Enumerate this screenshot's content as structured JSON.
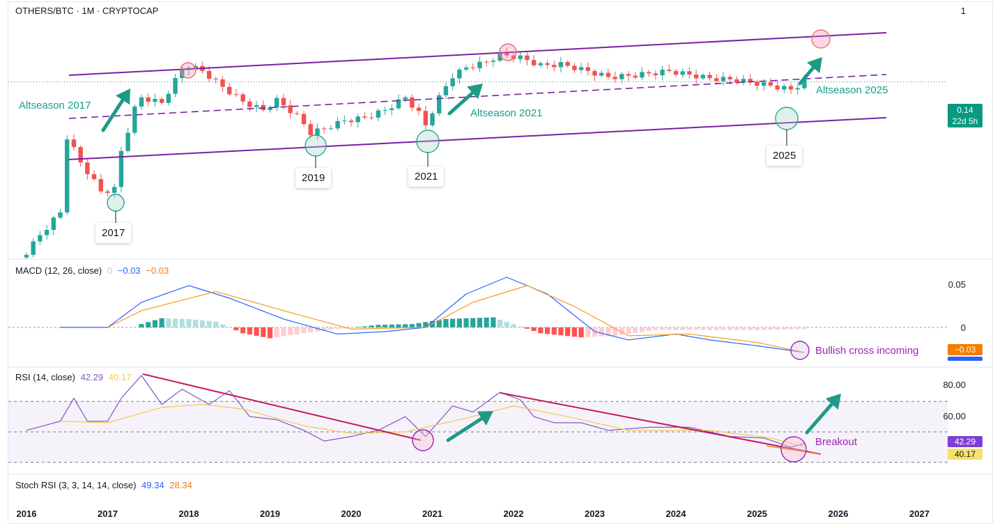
{
  "header": {
    "symbol_title": "OTHERS/BTC · 1M · CRYPTOCAP",
    "top_axis_value": "1"
  },
  "price_axis": {
    "price_tag": "0.14",
    "countdown_tag": "22d 5h",
    "tag_color": "#089981"
  },
  "macd": {
    "title": "MACD (12, 26, close)",
    "v_hist": "0",
    "v_macd": "−0.03",
    "v_signal": "−0.03",
    "axis_top": "0.05",
    "axis_zero": "0",
    "tag_value": "−0.03"
  },
  "rsi": {
    "title": "RSI (14, close)",
    "v_rsi": "42.29",
    "v_ma": "40.17",
    "axis_80": "80.00",
    "axis_60": "60.00",
    "tag_rsi": "42.29",
    "tag_ma": "40.17"
  },
  "stoch": {
    "title": "Stoch RSI (3, 3, 14, 14, close)",
    "v_k": "49.34",
    "v_d": "28.34"
  },
  "annotations": {
    "altseason_2017": "Altseason 2017",
    "altseason_2021": "Altseason 2021",
    "altseason_2025": "Altseason 2025",
    "bullish_cross": "Bullish cross incoming",
    "breakout": "Breakout",
    "year_2017": "2017",
    "year_2019": "2019",
    "year_2021": "2021",
    "year_2025": "2025"
  },
  "colors": {
    "up": "#26a69a",
    "down": "#ef5350",
    "channel": "#7b1fa2",
    "arrow": "#1e9a85",
    "annotation_teal": "#159e8b",
    "annotation_purple": "#9c27b0"
  },
  "chart_data": [
    {
      "type": "candlestick",
      "title": "OTHERS/BTC · 1M · CRYPTOCAP",
      "x_range": [
        "2016-01",
        "2027-01"
      ],
      "x_ticks": [
        "2016",
        "2017",
        "2018",
        "2019",
        "2020",
        "2021",
        "2022",
        "2023",
        "2024",
        "2025",
        "2026",
        "2027"
      ],
      "last_close": 0.14,
      "close_series": [
        {
          "t": "2016-01",
          "v": 0.0525
        },
        {
          "t": "2016-06",
          "v": 0.066
        },
        {
          "t": "2016-07",
          "v": 0.102
        },
        {
          "t": "2016-09",
          "v": 0.088
        },
        {
          "t": "2016-12",
          "v": 0.0745
        },
        {
          "t": "2017-02",
          "v": 0.0755
        },
        {
          "t": "2017-03",
          "v": 0.094
        },
        {
          "t": "2017-04",
          "v": 0.106
        },
        {
          "t": "2017-05",
          "v": 0.12
        },
        {
          "t": "2017-06",
          "v": 0.128
        },
        {
          "t": "2017-09",
          "v": 0.124
        },
        {
          "t": "2017-12",
          "v": 0.15
        },
        {
          "t": "2018-01",
          "v": 0.154
        },
        {
          "t": "2018-03",
          "v": 0.149
        },
        {
          "t": "2018-06",
          "v": 0.136
        },
        {
          "t": "2018-09",
          "v": 0.125
        },
        {
          "t": "2018-12",
          "v": 0.119
        },
        {
          "t": "2019-02",
          "v": 0.126
        },
        {
          "t": "2019-05",
          "v": 0.115
        },
        {
          "t": "2019-07",
          "v": 0.1045
        },
        {
          "t": "2019-09",
          "v": 0.107
        },
        {
          "t": "2019-12",
          "v": 0.112
        },
        {
          "t": "2020-03",
          "v": 0.114
        },
        {
          "t": "2020-06",
          "v": 0.119
        },
        {
          "t": "2020-09",
          "v": 0.128
        },
        {
          "t": "2020-11",
          "v": 0.117
        },
        {
          "t": "2020-12",
          "v": 0.109
        },
        {
          "t": "2021-02",
          "v": 0.128
        },
        {
          "t": "2021-04",
          "v": 0.145
        },
        {
          "t": "2021-06",
          "v": 0.152
        },
        {
          "t": "2021-09",
          "v": 0.157
        },
        {
          "t": "2021-11",
          "v": 0.164
        },
        {
          "t": "2022-02",
          "v": 0.161
        },
        {
          "t": "2022-05",
          "v": 0.154
        },
        {
          "t": "2022-08",
          "v": 0.155
        },
        {
          "t": "2022-12",
          "v": 0.149
        },
        {
          "t": "2023-03",
          "v": 0.144
        },
        {
          "t": "2023-06",
          "v": 0.145
        },
        {
          "t": "2023-09",
          "v": 0.147
        },
        {
          "t": "2023-12",
          "v": 0.149
        },
        {
          "t": "2024-03",
          "v": 0.146
        },
        {
          "t": "2024-06",
          "v": 0.143
        },
        {
          "t": "2024-09",
          "v": 0.142
        },
        {
          "t": "2024-12",
          "v": 0.14
        },
        {
          "t": "2025-03",
          "v": 0.137
        },
        {
          "t": "2025-06",
          "v": 0.134
        },
        {
          "t": "2025-08",
          "v": 0.14
        }
      ]
    },
    {
      "type": "line",
      "title": "MACD (12, 26, close)",
      "series": [
        {
          "name": "MACD",
          "points": [
            {
              "t": "2016-06",
              "v": 0.0
            },
            {
              "t": "2017-01",
              "v": 0.0
            },
            {
              "t": "2017-06",
              "v": 0.03
            },
            {
              "t": "2018-01",
              "v": 0.05
            },
            {
              "t": "2018-07",
              "v": 0.035
            },
            {
              "t": "2019-03",
              "v": 0.01
            },
            {
              "t": "2019-11",
              "v": -0.008
            },
            {
              "t": "2020-06",
              "v": -0.005
            },
            {
              "t": "2020-12",
              "v": 0.0
            },
            {
              "t": "2021-06",
              "v": 0.04
            },
            {
              "t": "2021-12",
              "v": 0.06
            },
            {
              "t": "2022-06",
              "v": 0.04
            },
            {
              "t": "2023-01",
              "v": -0.005
            },
            {
              "t": "2023-06",
              "v": -0.015
            },
            {
              "t": "2024-01",
              "v": -0.008
            },
            {
              "t": "2024-06",
              "v": -0.015
            },
            {
              "t": "2025-01",
              "v": -0.022
            },
            {
              "t": "2025-08",
              "v": -0.03
            }
          ]
        },
        {
          "name": "Signal",
          "points": [
            {
              "t": "2017-01",
              "v": 0.0
            },
            {
              "t": "2017-06",
              "v": 0.02
            },
            {
              "t": "2018-05",
              "v": 0.043
            },
            {
              "t": "2019-03",
              "v": 0.02
            },
            {
              "t": "2020-01",
              "v": -0.002
            },
            {
              "t": "2020-12",
              "v": 0.0
            },
            {
              "t": "2021-07",
              "v": 0.03
            },
            {
              "t": "2022-03",
              "v": 0.05
            },
            {
              "t": "2022-10",
              "v": 0.025
            },
            {
              "t": "2023-06",
              "v": -0.01
            },
            {
              "t": "2024-03",
              "v": -0.008
            },
            {
              "t": "2025-01",
              "v": -0.018
            },
            {
              "t": "2025-08",
              "v": -0.03
            }
          ]
        }
      ],
      "histogram": [
        {
          "t": "2017-06",
          "v": 0.004
        },
        {
          "t": "2017-09",
          "v": 0.011
        },
        {
          "t": "2018-01",
          "v": 0.01
        },
        {
          "t": "2018-05",
          "v": 0.007
        },
        {
          "t": "2018-09",
          "v": -0.007
        },
        {
          "t": "2019-01",
          "v": -0.013
        },
        {
          "t": "2019-06",
          "v": -0.007
        },
        {
          "t": "2019-10",
          "v": -0.003
        },
        {
          "t": "2020-05",
          "v": 0.003
        },
        {
          "t": "2020-10",
          "v": 0.004
        },
        {
          "t": "2021-03",
          "v": 0.01
        },
        {
          "t": "2021-10",
          "v": 0.012
        },
        {
          "t": "2022-05",
          "v": -0.007
        },
        {
          "t": "2022-11",
          "v": -0.012
        },
        {
          "t": "2023-04",
          "v": -0.01
        },
        {
          "t": "2023-10",
          "v": -0.003
        },
        {
          "t": "2024-06",
          "v": -0.003
        },
        {
          "t": "2025-01",
          "v": -0.003
        },
        {
          "t": "2025-08",
          "v": -0.002
        }
      ],
      "yticks": [
        "0.05",
        "0"
      ]
    },
    {
      "type": "line",
      "title": "RSI (14, close)",
      "yticks": [
        80,
        60
      ],
      "bands": [
        70,
        50,
        30
      ],
      "series": [
        {
          "name": "RSI",
          "points": [
            {
              "t": "2016-01",
              "v": 51
            },
            {
              "t": "2016-06",
              "v": 57
            },
            {
              "t": "2016-08",
              "v": 72
            },
            {
              "t": "2016-10",
              "v": 57
            },
            {
              "t": "2017-01",
              "v": 57
            },
            {
              "t": "2017-03",
              "v": 72
            },
            {
              "t": "2017-06",
              "v": 87
            },
            {
              "t": "2017-09",
              "v": 68
            },
            {
              "t": "2017-12",
              "v": 78
            },
            {
              "t": "2018-04",
              "v": 68
            },
            {
              "t": "2018-07",
              "v": 77
            },
            {
              "t": "2018-10",
              "v": 60
            },
            {
              "t": "2019-02",
              "v": 58
            },
            {
              "t": "2019-06",
              "v": 51
            },
            {
              "t": "2019-09",
              "v": 44
            },
            {
              "t": "2020-01",
              "v": 47
            },
            {
              "t": "2020-05",
              "v": 51
            },
            {
              "t": "2020-09",
              "v": 60
            },
            {
              "t": "2020-12",
              "v": 47
            },
            {
              "t": "2021-04",
              "v": 67
            },
            {
              "t": "2021-07",
              "v": 63
            },
            {
              "t": "2021-11",
              "v": 76
            },
            {
              "t": "2022-02",
              "v": 71
            },
            {
              "t": "2022-04",
              "v": 60
            },
            {
              "t": "2022-07",
              "v": 56
            },
            {
              "t": "2022-11",
              "v": 56
            },
            {
              "t": "2023-03",
              "v": 51
            },
            {
              "t": "2023-09",
              "v": 53
            },
            {
              "t": "2024-03",
              "v": 53
            },
            {
              "t": "2024-09",
              "v": 47
            },
            {
              "t": "2025-02",
              "v": 46
            },
            {
              "t": "2025-06",
              "v": 40
            },
            {
              "t": "2025-08",
              "v": 42.29
            }
          ]
        },
        {
          "name": "RSI-based MA",
          "points": [
            {
              "t": "2016-06",
              "v": 57
            },
            {
              "t": "2017-01",
              "v": 56
            },
            {
              "t": "2017-09",
              "v": 66
            },
            {
              "t": "2018-03",
              "v": 68
            },
            {
              "t": "2018-09",
              "v": 65
            },
            {
              "t": "2019-06",
              "v": 54
            },
            {
              "t": "2020-01",
              "v": 49
            },
            {
              "t": "2020-09",
              "v": 50
            },
            {
              "t": "2021-06",
              "v": 59
            },
            {
              "t": "2022-01",
              "v": 67
            },
            {
              "t": "2022-09",
              "v": 60
            },
            {
              "t": "2023-06",
              "v": 51
            },
            {
              "t": "2024-06",
              "v": 51
            },
            {
              "t": "2025-03",
              "v": 46
            },
            {
              "t": "2025-08",
              "v": 40.17
            }
          ]
        }
      ]
    }
  ]
}
